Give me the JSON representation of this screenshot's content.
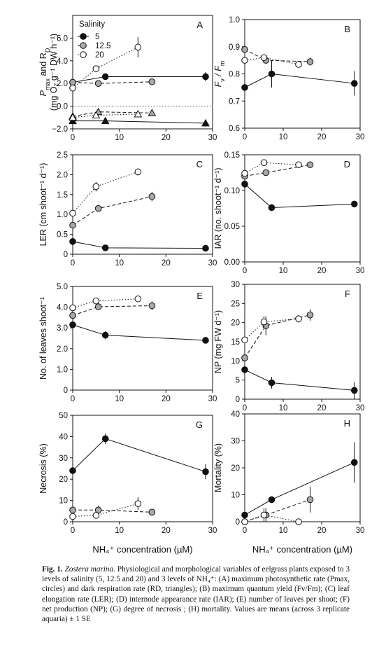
{
  "colors": {
    "s5": "#111111",
    "s12_5": "#a9a9a9",
    "s20": "#ffffff",
    "stroke": "#111111"
  },
  "legend": {
    "title": "Salinity",
    "items": [
      "5",
      "12.5",
      "20"
    ]
  },
  "x_axis_label": "NH₄⁺ concentration (µM)",
  "caption": {
    "head": "Fig. 1.",
    "species": "Zostera marina.",
    "text": "Physiological and morphological variables of eelgrass plants exposed to 3 levels of salinity (5, 12.5 and 20) and 3 levels of NH₄⁺: (A) maximum photosynthetic rate (Pmax, circles) and dark respiration rate (RD, triangles); (B) maximum quantum yield (Fv/Fm); (C) leaf elongation rate (LER); (D) internode appearance rate (IAR); (E) number of leaves per shoot; (F) net production (NP); (G) degree of necrosis ; (H) mortality. Values are means (across 3 replicate aquaria) ± 1 SE"
  },
  "chart_data": [
    {
      "panel": "A",
      "type": "line",
      "ylabel_lines": [
        "P",
        "max",
        " and R",
        "D",
        "(mg O₂ g⁻¹ DW h⁻¹)"
      ],
      "xlim": [
        0,
        30
      ],
      "ylim": [
        -2,
        8
      ],
      "yticks": [
        -2,
        0,
        2,
        4,
        6
      ],
      "ytick_labels": [
        "−2.0",
        "0.0",
        "2.0",
        "4.0",
        "6.0"
      ],
      "xticks": [
        0,
        10,
        20,
        30
      ],
      "xtick_labels": [
        "0",
        "10",
        "20",
        "30"
      ],
      "zero_line": true,
      "series": [
        {
          "salinity": "5",
          "marker": "circle",
          "x": [
            0,
            7,
            28.5
          ],
          "y": [
            2.1,
            2.6,
            2.6
          ],
          "err": [
            0,
            0.2,
            0.4
          ]
        },
        {
          "salinity": "12.5",
          "marker": "circle",
          "x": [
            0,
            5.5,
            17
          ],
          "y": [
            2.1,
            2.0,
            2.15
          ],
          "err": [
            0.2,
            0.2,
            0.15
          ]
        },
        {
          "salinity": "20",
          "marker": "circle",
          "x": [
            0,
            5,
            14
          ],
          "y": [
            1.6,
            3.3,
            5.2
          ],
          "err": [
            0.3,
            0.2,
            0.9
          ]
        },
        {
          "salinity": "5",
          "marker": "triangle",
          "x": [
            0,
            7,
            28.5
          ],
          "y": [
            -1.3,
            -1.3,
            -1.5
          ],
          "err": [
            0,
            0,
            0.3
          ]
        },
        {
          "salinity": "12.5",
          "marker": "triangle",
          "x": [
            0,
            5.5,
            17
          ],
          "y": [
            -0.9,
            -0.5,
            -0.6
          ],
          "err": [
            0.25,
            0.25,
            0.15
          ]
        },
        {
          "salinity": "20",
          "marker": "triangle",
          "x": [
            0,
            5,
            14
          ],
          "y": [
            -1.0,
            -0.8,
            -0.7
          ],
          "err": [
            0.2,
            0.25,
            0.2
          ]
        }
      ]
    },
    {
      "panel": "B",
      "type": "line",
      "ylabel_lines": [
        "F",
        "v",
        " / F",
        "m"
      ],
      "xlim": [
        0,
        30
      ],
      "ylim": [
        0.6,
        1.0
      ],
      "yticks": [
        0.6,
        0.7,
        0.8,
        0.9,
        1.0
      ],
      "ytick_labels": [
        "0.6",
        "0.7",
        "0.8",
        "0.9",
        "1.0"
      ],
      "xticks": [
        0,
        10,
        20,
        30
      ],
      "xtick_labels": [
        "0",
        "10",
        "20",
        "30"
      ],
      "series": [
        {
          "salinity": "5",
          "marker": "circle",
          "x": [
            0,
            7,
            28.5
          ],
          "y": [
            0.75,
            0.8,
            0.765
          ],
          "err": [
            0.03,
            0.05,
            0.045
          ]
        },
        {
          "salinity": "12.5",
          "marker": "circle",
          "x": [
            0,
            5.5,
            17
          ],
          "y": [
            0.89,
            0.85,
            0.845
          ],
          "err": [
            0.015,
            0.01,
            0.015
          ]
        },
        {
          "salinity": "20",
          "marker": "circle",
          "x": [
            0,
            5,
            14
          ],
          "y": [
            0.85,
            0.86,
            0.835
          ],
          "err": [
            0.02,
            0.01,
            0.01
          ]
        }
      ]
    },
    {
      "panel": "C",
      "type": "line",
      "ylabel_lines": [
        "LER (cm shoot⁻¹ d⁻¹)"
      ],
      "xlim": [
        0,
        30
      ],
      "ylim": [
        0,
        2.5
      ],
      "yticks": [
        0,
        0.5,
        1.0,
        1.5,
        2.0,
        2.5
      ],
      "ytick_labels": [
        "0",
        "0.5",
        "1.0",
        "1.5",
        "2.0",
        "2.5"
      ],
      "xticks": [
        0,
        10,
        20,
        30
      ],
      "xtick_labels": [
        "0",
        "10",
        "20",
        "30"
      ],
      "series": [
        {
          "salinity": "5",
          "marker": "circle",
          "x": [
            0,
            7,
            28.5
          ],
          "y": [
            0.32,
            0.16,
            0.15
          ],
          "err": [
            0.05,
            0.03,
            0.02
          ]
        },
        {
          "salinity": "12.5",
          "marker": "circle",
          "x": [
            0,
            5.5,
            17
          ],
          "y": [
            0.73,
            1.15,
            1.45
          ],
          "err": [
            0.06,
            0.05,
            0.12
          ]
        },
        {
          "salinity": "20",
          "marker": "circle",
          "x": [
            0,
            5,
            14
          ],
          "y": [
            1.03,
            1.7,
            2.07
          ],
          "err": [
            0.07,
            0.12,
            0.09
          ]
        }
      ]
    },
    {
      "panel": "D",
      "type": "line",
      "ylabel_lines": [
        "IAR (no. shoot⁻¹ d⁻¹)"
      ],
      "xlim": [
        0,
        30
      ],
      "ylim": [
        0,
        0.15
      ],
      "yticks": [
        0,
        0.05,
        0.1,
        0.15
      ],
      "ytick_labels": [
        "0.00",
        "0.05",
        "0.10",
        "0.15"
      ],
      "xticks": [
        0,
        10,
        20,
        30
      ],
      "xtick_labels": [
        "0",
        "10",
        "20",
        "30"
      ],
      "series": [
        {
          "salinity": "5",
          "marker": "circle",
          "x": [
            0,
            7,
            28.5
          ],
          "y": [
            0.109,
            0.076,
            0.081
          ],
          "err": [
            0.005,
            0.003,
            0.002
          ]
        },
        {
          "salinity": "12.5",
          "marker": "circle",
          "x": [
            0,
            5.5,
            17
          ],
          "y": [
            0.12,
            0.125,
            0.136
          ],
          "err": [
            0.005,
            0.003,
            0.003
          ]
        },
        {
          "salinity": "20",
          "marker": "circle",
          "x": [
            0,
            5,
            14
          ],
          "y": [
            0.124,
            0.139,
            0.136
          ],
          "err": [
            0.004,
            0.003,
            0.003
          ]
        }
      ]
    },
    {
      "panel": "E",
      "type": "line",
      "ylabel_lines": [
        "No. of leaves shoot⁻¹"
      ],
      "xlim": [
        0,
        30
      ],
      "ylim": [
        0,
        5.0
      ],
      "yticks": [
        0,
        1.0,
        2.0,
        3.0,
        4.0,
        5.0
      ],
      "ytick_labels": [
        "0",
        "1.0",
        "2.0",
        "3.0",
        "4.0",
        "5.0"
      ],
      "xticks": [
        0,
        10,
        20,
        30
      ],
      "xtick_labels": [
        "0",
        "10",
        "20",
        "30"
      ],
      "series": [
        {
          "salinity": "5",
          "marker": "circle",
          "x": [
            0,
            7,
            28.5
          ],
          "y": [
            3.15,
            2.65,
            2.4
          ],
          "err": [
            0.15,
            0.2,
            0.1
          ]
        },
        {
          "salinity": "12.5",
          "marker": "circle",
          "x": [
            0,
            5.5,
            17
          ],
          "y": [
            3.6,
            4.02,
            4.07
          ],
          "err": [
            0.15,
            0.15,
            0.2
          ]
        },
        {
          "salinity": "20",
          "marker": "circle",
          "x": [
            0,
            5,
            14
          ],
          "y": [
            3.97,
            4.3,
            4.4
          ],
          "err": [
            0.1,
            0.1,
            0.1
          ]
        }
      ]
    },
    {
      "panel": "F",
      "type": "line",
      "ylabel_lines": [
        "NP (mg FW d⁻¹)"
      ],
      "xlim": [
        0,
        30
      ],
      "ylim": [
        0,
        30
      ],
      "yticks": [
        0,
        5,
        10,
        15,
        20,
        25,
        30
      ],
      "ytick_labels": [
        "0",
        "5",
        "10",
        "15",
        "20",
        "25",
        "30"
      ],
      "xticks": [
        0,
        10,
        20,
        30
      ],
      "xtick_labels": [
        "0",
        "10",
        "20",
        "30"
      ],
      "series": [
        {
          "salinity": "5",
          "marker": "circle",
          "x": [
            0,
            7,
            28.5
          ],
          "y": [
            7.7,
            4.3,
            2.3
          ],
          "err": [
            1.2,
            1.5,
            2.2
          ]
        },
        {
          "salinity": "12.5",
          "marker": "circle",
          "x": [
            0,
            5.5,
            17
          ],
          "y": [
            10.8,
            19.2,
            22.0
          ],
          "err": [
            1.5,
            2.5,
            1.5
          ]
        },
        {
          "salinity": "20",
          "marker": "circle",
          "x": [
            0,
            5,
            14
          ],
          "y": [
            15.5,
            20.2,
            21.0
          ],
          "err": [
            1.5,
            1.5,
            1.0
          ]
        }
      ]
    },
    {
      "panel": "G",
      "type": "line",
      "ylabel_lines": [
        "Necrosis (%)"
      ],
      "xlim": [
        0,
        30
      ],
      "ylim": [
        0,
        50
      ],
      "yticks": [
        0,
        10,
        20,
        30,
        40,
        50
      ],
      "ytick_labels": [
        "0",
        "10",
        "20",
        "30",
        "40",
        "50"
      ],
      "xticks": [
        0,
        10,
        20,
        30
      ],
      "xtick_labels": [
        "0",
        "10",
        "20",
        "30"
      ],
      "series": [
        {
          "salinity": "5",
          "marker": "circle",
          "x": [
            0,
            7,
            28.5
          ],
          "y": [
            24,
            39,
            23.5
          ],
          "err": [
            2,
            2.5,
            3.5
          ]
        },
        {
          "salinity": "12.5",
          "marker": "circle",
          "x": [
            0,
            5.5,
            17
          ],
          "y": [
            5.5,
            5.5,
            4.5
          ],
          "err": [
            1.5,
            2,
            1.2
          ]
        },
        {
          "salinity": "20",
          "marker": "circle",
          "x": [
            0,
            5,
            14
          ],
          "y": [
            2.5,
            3.0,
            8.5
          ],
          "err": [
            1.5,
            1.5,
            3
          ]
        }
      ]
    },
    {
      "panel": "H",
      "type": "line",
      "ylabel_lines": [
        "Mortality (%)"
      ],
      "xlim": [
        0,
        30
      ],
      "ylim": [
        0,
        40
      ],
      "yticks": [
        0,
        10,
        20,
        30,
        40
      ],
      "ytick_labels": [
        "0",
        "10",
        "20",
        "30",
        "40"
      ],
      "xticks": [
        0,
        10,
        20,
        30
      ],
      "xtick_labels": [
        "0",
        "10",
        "20",
        "30"
      ],
      "series": [
        {
          "salinity": "5",
          "marker": "circle",
          "x": [
            0,
            7,
            28.5
          ],
          "y": [
            2.5,
            8.2,
            22
          ],
          "err": [
            2.5,
            0,
            7.5
          ]
        },
        {
          "salinity": "12.5",
          "marker": "circle",
          "x": [
            0,
            5.5,
            17
          ],
          "y": [
            0,
            2.5,
            8.2
          ],
          "err": [
            0,
            2.5,
            4.8
          ]
        },
        {
          "salinity": "20",
          "marker": "circle",
          "x": [
            0,
            5,
            14
          ],
          "y": [
            0,
            2.5,
            0
          ],
          "err": [
            0,
            2.5,
            0
          ]
        }
      ]
    }
  ]
}
